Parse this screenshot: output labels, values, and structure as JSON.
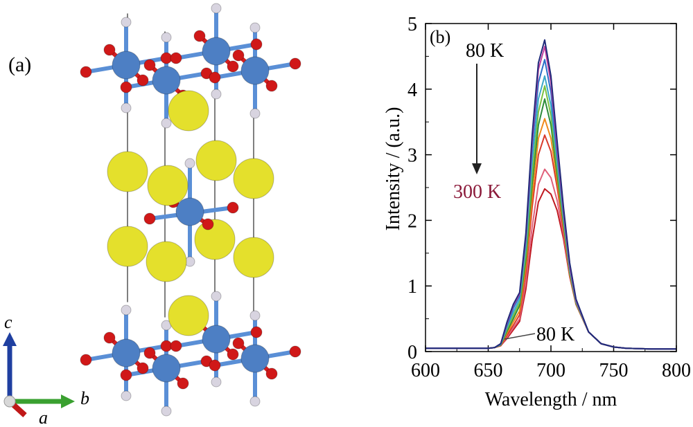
{
  "panel_a": {
    "label": "(a)",
    "axes": {
      "c": "c",
      "b": "b",
      "a": "a"
    },
    "colors": {
      "sphere_large": "#e4e02c",
      "sphere_metal": "#4d7fc4",
      "oxygen": "#d01818",
      "small_white": "#d8d4e0",
      "bond_metal": "#5a8fd6",
      "bond_red": "#d42020",
      "cell_edge": "#555555"
    }
  },
  "panel_b": {
    "label": "(b)",
    "annotation_top": "80 K",
    "annotation_bottom": "300 K",
    "annotation_edge": "80 K",
    "annotation_bottom_color": "#8b1a3a"
  },
  "chart_data": {
    "type": "line",
    "title": "",
    "xlabel": "Wavelength / nm",
    "ylabel": "Intensity / (a.u.)",
    "xlim": [
      600,
      800
    ],
    "ylim": [
      0,
      5
    ],
    "xticks": [
      600,
      650,
      700,
      750,
      800
    ],
    "yticks": [
      0,
      1,
      2,
      3,
      4,
      5
    ],
    "grid": false,
    "legend": "none",
    "x": [
      600,
      640,
      650,
      655,
      660,
      665,
      670,
      675,
      680,
      685,
      690,
      695,
      700,
      705,
      710,
      715,
      720,
      730,
      740,
      750,
      760,
      780,
      800
    ],
    "series": [
      {
        "color": "#1f2a7a",
        "values": [
          0.05,
          0.05,
          0.05,
          0.06,
          0.12,
          0.45,
          0.72,
          0.9,
          1.8,
          3.3,
          4.4,
          4.75,
          4.2,
          3.2,
          2.2,
          1.35,
          0.8,
          0.3,
          0.12,
          0.07,
          0.05,
          0.04,
          0.04
        ]
      },
      {
        "color": "#c040a0",
        "values": [
          0.05,
          0.05,
          0.05,
          0.06,
          0.12,
          0.43,
          0.7,
          0.88,
          1.75,
          3.2,
          4.3,
          4.65,
          4.1,
          3.1,
          2.15,
          1.3,
          0.78,
          0.3,
          0.12,
          0.07,
          0.05,
          0.04,
          0.04
        ]
      },
      {
        "color": "#2a6ec8",
        "values": [
          0.05,
          0.05,
          0.05,
          0.06,
          0.12,
          0.4,
          0.66,
          0.85,
          1.7,
          3.1,
          4.1,
          4.45,
          3.95,
          3.0,
          2.1,
          1.28,
          0.77,
          0.3,
          0.12,
          0.07,
          0.05,
          0.04,
          0.04
        ]
      },
      {
        "color": "#3aa8c8",
        "values": [
          0.05,
          0.05,
          0.05,
          0.06,
          0.11,
          0.37,
          0.6,
          0.8,
          1.6,
          2.9,
          3.85,
          4.2,
          3.75,
          2.9,
          2.05,
          1.25,
          0.76,
          0.3,
          0.12,
          0.07,
          0.05,
          0.04,
          0.04
        ]
      },
      {
        "color": "#7ac040",
        "values": [
          0.05,
          0.05,
          0.05,
          0.06,
          0.11,
          0.34,
          0.55,
          0.75,
          1.5,
          2.7,
          3.65,
          4.05,
          3.6,
          2.8,
          2.0,
          1.22,
          0.75,
          0.3,
          0.12,
          0.07,
          0.05,
          0.04,
          0.04
        ]
      },
      {
        "color": "#2e8b3a",
        "values": [
          0.05,
          0.05,
          0.05,
          0.06,
          0.1,
          0.31,
          0.5,
          0.7,
          1.4,
          2.55,
          3.45,
          3.85,
          3.45,
          2.7,
          1.95,
          1.2,
          0.74,
          0.3,
          0.12,
          0.07,
          0.05,
          0.04,
          0.04
        ]
      },
      {
        "color": "#f08a1a",
        "values": [
          0.05,
          0.05,
          0.05,
          0.06,
          0.1,
          0.28,
          0.45,
          0.62,
          1.3,
          2.35,
          3.25,
          3.55,
          3.25,
          2.6,
          1.9,
          1.18,
          0.73,
          0.3,
          0.12,
          0.07,
          0.05,
          0.04,
          0.04
        ]
      },
      {
        "color": "#d83a2a",
        "values": [
          0.05,
          0.05,
          0.05,
          0.06,
          0.09,
          0.25,
          0.4,
          0.56,
          1.2,
          2.2,
          3.0,
          3.3,
          3.05,
          2.5,
          1.85,
          1.16,
          0.72,
          0.3,
          0.12,
          0.07,
          0.05,
          0.04,
          0.04
        ]
      },
      {
        "color": "#e0607a",
        "values": [
          0.05,
          0.05,
          0.05,
          0.06,
          0.09,
          0.22,
          0.36,
          0.5,
          1.05,
          1.9,
          2.55,
          2.78,
          2.65,
          2.3,
          1.78,
          1.15,
          0.72,
          0.3,
          0.12,
          0.07,
          0.05,
          0.04,
          0.04
        ]
      },
      {
        "color": "#c01820",
        "values": [
          0.05,
          0.05,
          0.05,
          0.06,
          0.09,
          0.2,
          0.33,
          0.46,
          0.95,
          1.7,
          2.28,
          2.48,
          2.4,
          2.15,
          1.72,
          1.14,
          0.72,
          0.3,
          0.12,
          0.07,
          0.05,
          0.04,
          0.04
        ]
      }
    ]
  }
}
